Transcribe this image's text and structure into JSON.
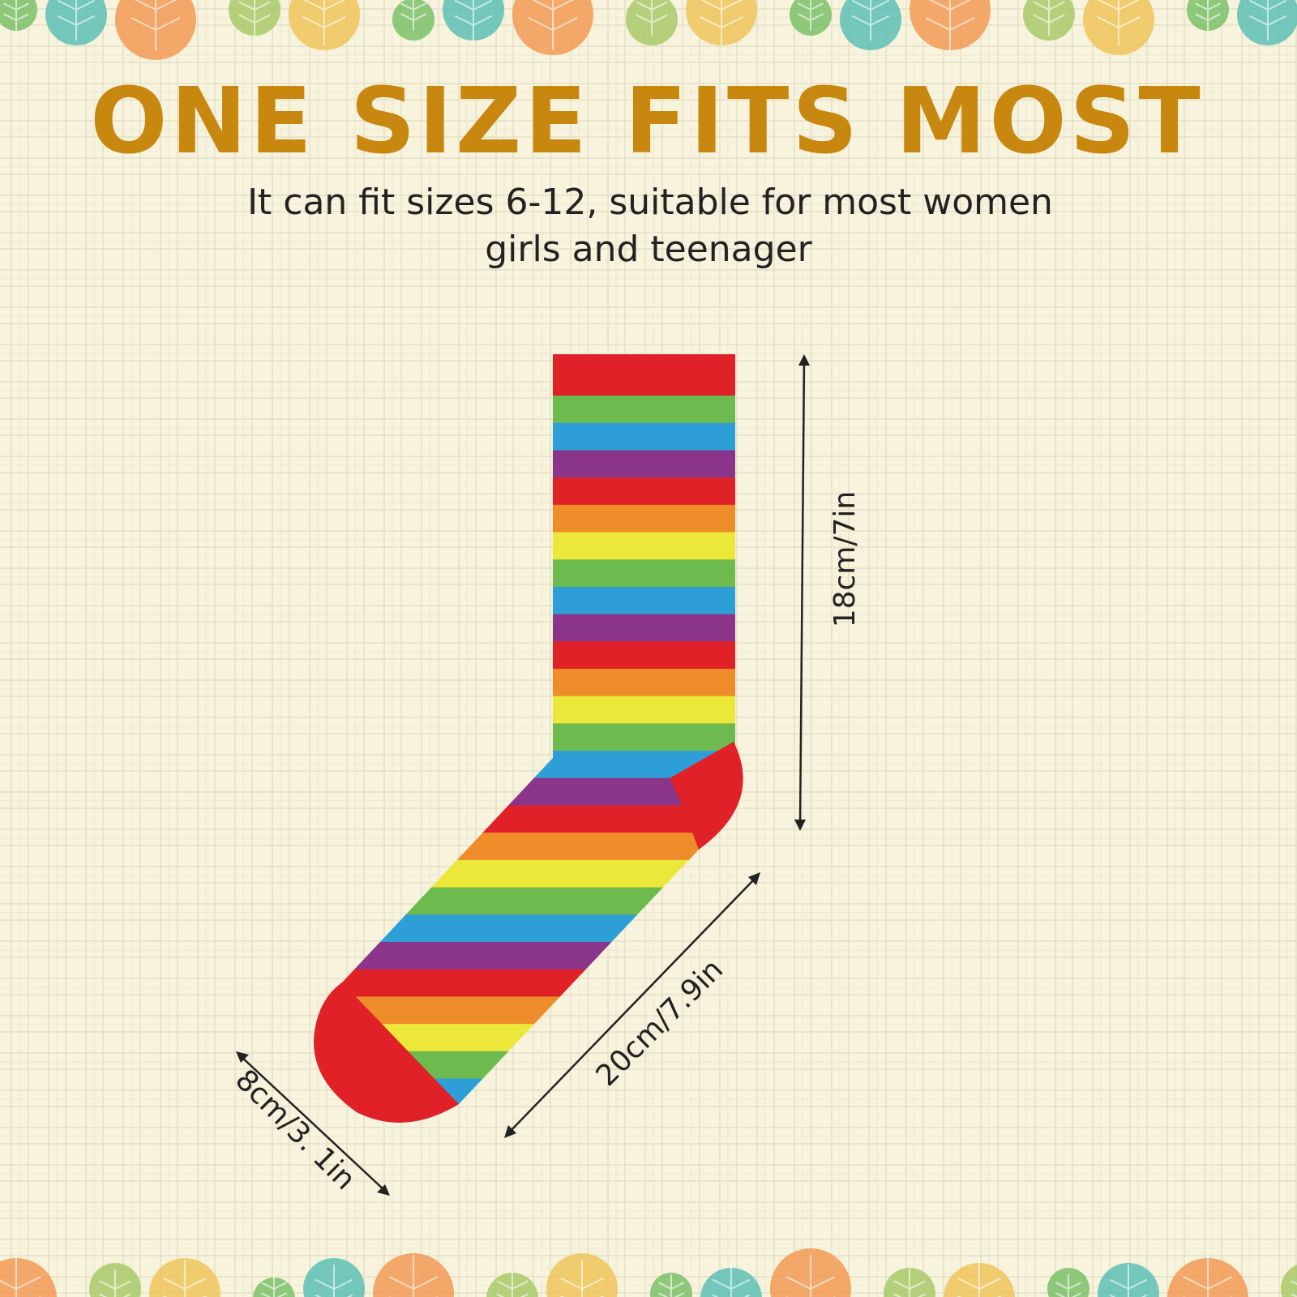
{
  "header": {
    "title": "ONE SIZE FITS MOST",
    "subtitle_lines": [
      "It can fit sizes 6-12, suitable for most women",
      "girls and teenager"
    ]
  },
  "measurements": {
    "leg_height": "18cm/7in",
    "foot_length": "20cm/7.9in",
    "foot_width": "8cm/3. 1in"
  }
}
